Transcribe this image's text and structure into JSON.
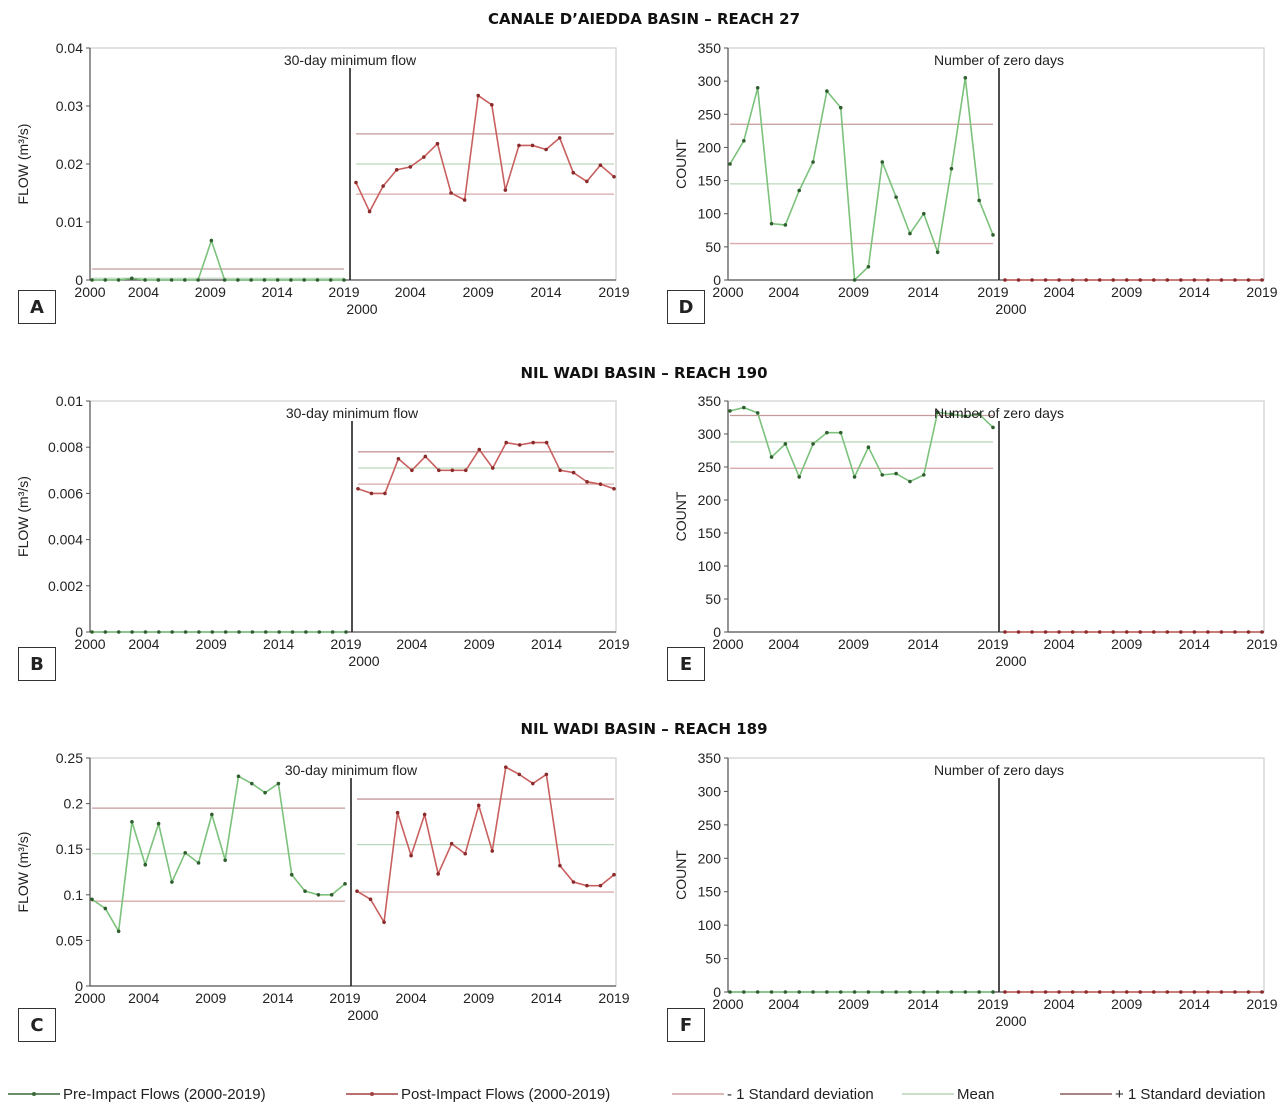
{
  "section_titles": {
    "s1": "CANALE D’AIEDDA BASIN – REACH 27",
    "s2": "NIL WADI BASIN – REACH 190",
    "s3": "NIL WADI BASIN – REACH 189"
  },
  "legend": {
    "pre": "Pre-Impact Flows (2000-2019)",
    "post": "Post-Impact Flows (2000-2019)",
    "minus_sd": "- 1 Standard deviation",
    "mean": "Mean",
    "plus_sd": "+ 1 Standard deviation"
  },
  "colors": {
    "pre": "#7cc27c",
    "post": "#c96060",
    "sd_line": "#d4a0a0",
    "mean_line": "#b8d4b8",
    "divider": "#222222"
  },
  "panels": [
    {
      "letter": "A",
      "title": "30-day minimum flow",
      "ylabel": "FLOW  (m³/s)"
    },
    {
      "letter": "B",
      "title": "30-day minimum flow",
      "ylabel": "FLOW (m³/s)"
    },
    {
      "letter": "C",
      "title": "30-day minimum flow",
      "ylabel": "FLOW (m³/s)"
    },
    {
      "letter": "D",
      "title": "Number of zero days",
      "ylabel": "COUNT"
    },
    {
      "letter": "E",
      "title": "Number of zero days",
      "ylabel": "COUNT"
    },
    {
      "letter": "F",
      "title": "Number of zero days",
      "ylabel": "COUNT"
    }
  ],
  "chart_data": [
    {
      "type": "line",
      "panel": "A",
      "x_pre": [
        2000,
        2001,
        2002,
        2003,
        2004,
        2005,
        2006,
        2007,
        2008,
        2009,
        2010,
        2011,
        2012,
        2013,
        2014,
        2015,
        2016,
        2017,
        2018,
        2019
      ],
      "x_post": [
        2000,
        2001,
        2002,
        2003,
        2004,
        2005,
        2006,
        2007,
        2008,
        2009,
        2010,
        2011,
        2012,
        2013,
        2014,
        2015,
        2016,
        2017,
        2018,
        2019
      ],
      "ylim": [
        0,
        0.04
      ],
      "yticks": [
        "0",
        "0.01",
        "0.02",
        "0.03",
        "0.04"
      ],
      "ytick_values": [
        0,
        0.01,
        0.02,
        0.03,
        0.04
      ],
      "xtick_labels": [
        "2000",
        "2004",
        "2009",
        "2014",
        "2019"
      ],
      "xtick_labels_post": [
        "2004",
        "2009",
        "2014",
        "2019"
      ],
      "post_start_label": "2000",
      "pre": [
        0,
        0,
        0,
        0.0003,
        0,
        0,
        0,
        0,
        0,
        0.0068,
        0,
        0,
        0,
        0,
        0,
        0,
        0,
        0,
        0,
        0
      ],
      "post": [
        0.0168,
        0.0118,
        0.0162,
        0.019,
        0.0195,
        0.0212,
        0.0235,
        0.015,
        0.0138,
        0.0318,
        0.0302,
        0.0155,
        0.0232,
        0.0232,
        0.0225,
        0.0245,
        0.0185,
        0.017,
        0.0198,
        0.0178
      ],
      "pre_lines": {
        "minus_sd": null,
        "mean": 0.0003,
        "plus_sd": 0.0019
      },
      "post_lines": {
        "minus_sd": 0.0148,
        "mean": 0.02,
        "plus_sd": 0.0252
      }
    },
    {
      "type": "line",
      "panel": "B",
      "x_pre": [
        2000,
        2001,
        2002,
        2003,
        2004,
        2005,
        2006,
        2007,
        2008,
        2009,
        2010,
        2011,
        2012,
        2013,
        2014,
        2015,
        2016,
        2017,
        2018,
        2019
      ],
      "x_post": [
        2000,
        2001,
        2002,
        2003,
        2004,
        2005,
        2006,
        2007,
        2008,
        2009,
        2010,
        2011,
        2012,
        2013,
        2014,
        2015,
        2016,
        2017,
        2018,
        2019
      ],
      "ylim": [
        0,
        0.01
      ],
      "yticks": [
        "0",
        "0.002",
        "0.004",
        "0.006",
        "0.008",
        "0.01"
      ],
      "ytick_values": [
        0,
        0.002,
        0.004,
        0.006,
        0.008,
        0.01
      ],
      "xtick_labels": [
        "2000",
        "2004",
        "2009",
        "2014",
        "2019"
      ],
      "xtick_labels_post": [
        "2004",
        "2009",
        "2014",
        "2019"
      ],
      "post_start_label": "2000",
      "pre": [
        0,
        0,
        0,
        0,
        0,
        0,
        0,
        0,
        0,
        0,
        0,
        0,
        0,
        0,
        0,
        0,
        0,
        0,
        0,
        0
      ],
      "post": [
        0.0062,
        0.006,
        0.006,
        0.0075,
        0.007,
        0.0076,
        0.007,
        0.007,
        0.007,
        0.0079,
        0.0071,
        0.0082,
        0.0081,
        0.0082,
        0.0082,
        0.007,
        0.0069,
        0.0065,
        0.0064,
        0.0062
      ],
      "pre_lines": {
        "minus_sd": null,
        "mean": null,
        "plus_sd": null
      },
      "post_lines": {
        "minus_sd": 0.0064,
        "mean": 0.0071,
        "plus_sd": 0.0078
      }
    },
    {
      "type": "line",
      "panel": "C",
      "x_pre": [
        2000,
        2001,
        2002,
        2003,
        2004,
        2005,
        2006,
        2007,
        2008,
        2009,
        2010,
        2011,
        2012,
        2013,
        2014,
        2015,
        2016,
        2017,
        2018,
        2019
      ],
      "x_post": [
        2000,
        2001,
        2002,
        2003,
        2004,
        2005,
        2006,
        2007,
        2008,
        2009,
        2010,
        2011,
        2012,
        2013,
        2014,
        2015,
        2016,
        2017,
        2018,
        2019
      ],
      "ylim": [
        0,
        0.25
      ],
      "yticks": [
        "0",
        "0.05",
        "0.1",
        "0.15",
        "0.2",
        "0.25"
      ],
      "ytick_values": [
        0,
        0.05,
        0.1,
        0.15,
        0.2,
        0.25
      ],
      "xtick_labels": [
        "2000",
        "2004",
        "2009",
        "2014",
        "2019"
      ],
      "xtick_labels_post": [
        "2004",
        "2009",
        "2014",
        "2019"
      ],
      "post_start_label": "2000",
      "pre": [
        0.095,
        0.085,
        0.06,
        0.18,
        0.133,
        0.178,
        0.114,
        0.146,
        0.135,
        0.188,
        0.138,
        0.23,
        0.222,
        0.212,
        0.222,
        0.122,
        0.104,
        0.1,
        0.1,
        0.112
      ],
      "post": [
        0.104,
        0.095,
        0.07,
        0.19,
        0.143,
        0.188,
        0.123,
        0.156,
        0.145,
        0.198,
        0.148,
        0.24,
        0.232,
        0.222,
        0.232,
        0.132,
        0.114,
        0.11,
        0.11,
        0.122
      ],
      "pre_lines": {
        "minus_sd": 0.093,
        "mean": 0.145,
        "plus_sd": 0.195
      },
      "post_lines": {
        "minus_sd": 0.103,
        "mean": 0.155,
        "plus_sd": 0.205
      }
    },
    {
      "type": "line",
      "panel": "D",
      "x_pre": [
        2000,
        2001,
        2002,
        2003,
        2004,
        2005,
        2006,
        2007,
        2008,
        2009,
        2010,
        2011,
        2012,
        2013,
        2014,
        2015,
        2016,
        2017,
        2018,
        2019
      ],
      "x_post": [
        2000,
        2001,
        2002,
        2003,
        2004,
        2005,
        2006,
        2007,
        2008,
        2009,
        2010,
        2011,
        2012,
        2013,
        2014,
        2015,
        2016,
        2017,
        2018,
        2019
      ],
      "ylim": [
        0,
        350
      ],
      "yticks": [
        "0",
        "50",
        "100",
        "150",
        "200",
        "250",
        "300",
        "350"
      ],
      "ytick_values": [
        0,
        50,
        100,
        150,
        200,
        250,
        300,
        350
      ],
      "xtick_labels": [
        "2000",
        "2004",
        "2009",
        "2014",
        "2019"
      ],
      "xtick_labels_post": [
        "2004",
        "2009",
        "2014",
        "2019"
      ],
      "post_start_label": "2000",
      "pre": [
        175,
        210,
        290,
        85,
        83,
        135,
        178,
        285,
        260,
        0,
        20,
        178,
        125,
        70,
        100,
        42,
        168,
        305,
        120,
        68
      ],
      "post": [
        0,
        0,
        0,
        0,
        0,
        0,
        0,
        0,
        0,
        0,
        0,
        0,
        0,
        0,
        0,
        0,
        0,
        0,
        0,
        0
      ],
      "pre_lines": {
        "minus_sd": 55,
        "mean": 145,
        "plus_sd": 235
      },
      "post_lines": {
        "minus_sd": null,
        "mean": null,
        "plus_sd": null
      }
    },
    {
      "type": "line",
      "panel": "E",
      "x_pre": [
        2000,
        2001,
        2002,
        2003,
        2004,
        2005,
        2006,
        2007,
        2008,
        2009,
        2010,
        2011,
        2012,
        2013,
        2014,
        2015,
        2016,
        2017,
        2018,
        2019
      ],
      "x_post": [
        2000,
        2001,
        2002,
        2003,
        2004,
        2005,
        2006,
        2007,
        2008,
        2009,
        2010,
        2011,
        2012,
        2013,
        2014,
        2015,
        2016,
        2017,
        2018,
        2019
      ],
      "ylim": [
        0,
        350
      ],
      "yticks": [
        "0",
        "50",
        "100",
        "150",
        "200",
        "250",
        "300",
        "350"
      ],
      "ytick_values": [
        0,
        50,
        100,
        150,
        200,
        250,
        300,
        350
      ],
      "xtick_labels": [
        "2000",
        "2004",
        "2009",
        "2014",
        "2019"
      ],
      "xtick_labels_post": [
        "2004",
        "2009",
        "2014",
        "2019"
      ],
      "post_start_label": "2000",
      "pre": [
        335,
        340,
        332,
        265,
        285,
        235,
        285,
        302,
        302,
        235,
        280,
        238,
        240,
        228,
        238,
        333,
        330,
        327,
        330,
        310
      ],
      "post": [
        0,
        0,
        0,
        0,
        0,
        0,
        0,
        0,
        0,
        0,
        0,
        0,
        0,
        0,
        0,
        0,
        0,
        0,
        0,
        0
      ],
      "pre_lines": {
        "minus_sd": 248,
        "mean": 288,
        "plus_sd": 328
      },
      "post_lines": {
        "minus_sd": null,
        "mean": null,
        "plus_sd": null
      }
    },
    {
      "type": "line",
      "panel": "F",
      "x_pre": [
        2000,
        2001,
        2002,
        2003,
        2004,
        2005,
        2006,
        2007,
        2008,
        2009,
        2010,
        2011,
        2012,
        2013,
        2014,
        2015,
        2016,
        2017,
        2018,
        2019
      ],
      "x_post": [
        2000,
        2001,
        2002,
        2003,
        2004,
        2005,
        2006,
        2007,
        2008,
        2009,
        2010,
        2011,
        2012,
        2013,
        2014,
        2015,
        2016,
        2017,
        2018,
        2019
      ],
      "ylim": [
        0,
        350
      ],
      "yticks": [
        "0",
        "50",
        "100",
        "150",
        "200",
        "250",
        "300",
        "350"
      ],
      "ytick_values": [
        0,
        50,
        100,
        150,
        200,
        250,
        300,
        350
      ],
      "xtick_labels": [
        "2000",
        "2004",
        "2009",
        "2014",
        "2019"
      ],
      "xtick_labels_post": [
        "2004",
        "2009",
        "2014",
        "2019"
      ],
      "post_start_label": "2000",
      "pre": [
        0,
        0,
        0,
        0,
        0,
        0,
        0,
        0,
        0,
        0,
        0,
        0,
        0,
        0,
        0,
        0,
        0,
        0,
        0,
        0
      ],
      "post": [
        0,
        0,
        0,
        0,
        0,
        0,
        0,
        0,
        0,
        0,
        0,
        0,
        0,
        0,
        0,
        0,
        0,
        0,
        0,
        0
      ],
      "pre_lines": {
        "minus_sd": null,
        "mean": null,
        "plus_sd": null
      },
      "post_lines": {
        "minus_sd": null,
        "mean": null,
        "plus_sd": null
      }
    }
  ]
}
